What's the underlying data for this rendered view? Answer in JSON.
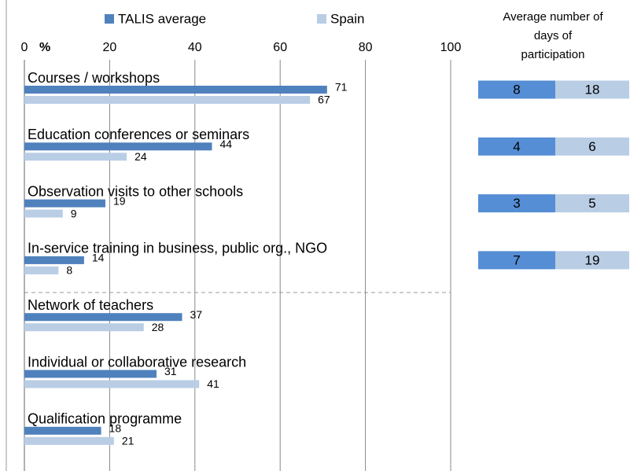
{
  "chart_data": {
    "type": "bar",
    "orientation": "horizontal",
    "x_unit_label": "%",
    "categories": [
      "Courses / workshops",
      "Education conferences or seminars",
      "Observation visits to other schools",
      "In-service training in business, public org., NGO",
      "Network of teachers",
      "Individual or collaborative research",
      "Qualification programme"
    ],
    "series": [
      {
        "name": "TALIS average",
        "color": "#4f81bd",
        "values": [
          71,
          44,
          19,
          14,
          37,
          31,
          18
        ]
      },
      {
        "name": "Spain",
        "color": "#b9cde5",
        "values": [
          67,
          24,
          9,
          8,
          28,
          41,
          21
        ]
      }
    ],
    "xlim": [
      0,
      100
    ],
    "xticks": [
      0,
      20,
      40,
      60,
      80,
      100
    ],
    "grid": true,
    "days_table": {
      "title_lines": [
        "Average number of",
        "days of",
        "participation"
      ],
      "rows": [
        [
          8,
          18
        ],
        [
          4,
          6
        ],
        [
          3,
          5
        ],
        [
          7,
          19
        ]
      ],
      "colors": [
        "#558ed5",
        "#b9cde5"
      ]
    }
  }
}
